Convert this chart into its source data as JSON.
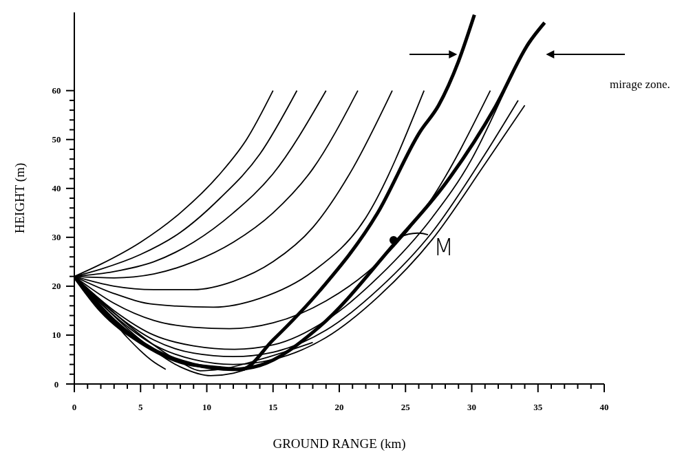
{
  "chart_data": {
    "type": "line",
    "xlabel": "GROUND RANGE (km)",
    "ylabel": "HEIGHT (m)",
    "xlim": [
      0,
      40
    ],
    "ylim": [
      0,
      76
    ],
    "xticks": [
      0,
      {
        "value": 1,
        "label": null
      },
      {
        "value": 2,
        "label": null
      },
      {
        "value": 3,
        "label": null
      },
      {
        "value": 4,
        "label": null
      },
      5,
      {
        "value": 6,
        "label": null
      },
      {
        "value": 7,
        "label": null
      },
      {
        "value": 8,
        "label": null
      },
      {
        "value": 9,
        "label": null
      },
      10,
      {
        "value": 11,
        "label": null
      },
      {
        "value": 12,
        "label": null
      },
      {
        "value": 13,
        "label": null
      },
      {
        "value": 14,
        "label": null
      },
      15,
      {
        "value": 16,
        "label": null
      },
      {
        "value": 17,
        "label": null
      },
      {
        "value": 18,
        "label": null
      },
      {
        "value": 19,
        "label": null
      },
      20,
      {
        "value": 21,
        "label": null
      },
      {
        "value": 22,
        "label": null
      },
      {
        "value": 23,
        "label": null
      },
      {
        "value": 24,
        "label": null
      },
      25,
      {
        "value": 26,
        "label": null
      },
      {
        "value": 27,
        "label": null
      },
      {
        "value": 28,
        "label": null
      },
      {
        "value": 29,
        "label": null
      },
      30,
      {
        "value": 31,
        "label": null
      },
      {
        "value": 32,
        "label": null
      },
      {
        "value": 33,
        "label": null
      },
      {
        "value": 34,
        "label": null
      },
      35,
      {
        "value": 36,
        "label": null
      },
      {
        "value": 37,
        "label": null
      },
      {
        "value": 38,
        "label": null
      },
      {
        "value": 39,
        "label": null
      },
      40
    ],
    "yticks": [
      0,
      {
        "value": 2,
        "label": null
      },
      {
        "value": 4,
        "label": null
      },
      {
        "value": 6,
        "label": null
      },
      {
        "value": 8,
        "label": null
      },
      10,
      {
        "value": 12,
        "label": null
      },
      {
        "value": 14,
        "label": null
      },
      {
        "value": 16,
        "label": null
      },
      {
        "value": 18,
        "label": null
      },
      20,
      {
        "value": 22,
        "label": null
      },
      {
        "value": 24,
        "label": null
      },
      {
        "value": 26,
        "label": null
      },
      {
        "value": 28,
        "label": null
      },
      30,
      {
        "value": 32,
        "label": null
      },
      {
        "value": 34,
        "label": null
      },
      {
        "value": 36,
        "label": null
      },
      {
        "value": 38,
        "label": null
      },
      40,
      {
        "value": 42,
        "label": null
      },
      {
        "value": 44,
        "label": null
      },
      {
        "value": 46,
        "label": null
      },
      {
        "value": 48,
        "label": null
      },
      50,
      {
        "value": 52,
        "label": null
      },
      {
        "value": 54,
        "label": null
      },
      {
        "value": 56,
        "label": null
      },
      {
        "value": 58,
        "label": null
      },
      60
    ],
    "marker": "none",
    "line_style": "solid",
    "annotations": [
      {
        "text": "M",
        "x": 24.1,
        "y": 29.4
      },
      "mirage zone."
    ],
    "series": [
      {
        "color": "#000000",
        "x": [
          0,
          2,
          5,
          8,
          11,
          13,
          15
        ],
        "values": [
          22,
          24.5,
          29,
          35,
          43,
          50,
          60
        ]
      },
      {
        "color": "#000000",
        "x": [
          0,
          2,
          5,
          8,
          11,
          14,
          16.8
        ],
        "values": [
          22,
          23.5,
          26.5,
          31,
          38,
          47,
          60
        ]
      },
      {
        "color": "#000000",
        "x": [
          0,
          3,
          6,
          9,
          12,
          15,
          19
        ],
        "values": [
          22,
          23,
          25,
          29,
          35,
          43,
          60
        ]
      },
      {
        "color": "#000000",
        "x": [
          0,
          3,
          6,
          9,
          12,
          15,
          18,
          21.4
        ],
        "values": [
          22,
          21.7,
          22.5,
          25,
          29,
          35,
          44,
          60
        ]
      },
      {
        "color": "#000000",
        "x": [
          0,
          3,
          6,
          9,
          12,
          15,
          18,
          21,
          24
        ],
        "values": [
          22,
          20,
          19.3,
          19.3,
          21,
          25,
          32,
          44,
          60
        ]
      },
      {
        "color": "#000000",
        "x": [
          0,
          3,
          6,
          10.5,
          14,
          18,
          22,
          26.4
        ],
        "values": [
          22,
          18.5,
          16.3,
          15.7,
          17.5,
          23,
          34,
          60
        ]
      },
      {
        "color": "#000000",
        "x": [
          0,
          3,
          6,
          9,
          11.7,
          15,
          19,
          23,
          27,
          31.4
        ],
        "values": [
          22,
          16.5,
          13,
          11.6,
          11.3,
          12.5,
          17,
          25,
          38,
          60
        ]
      },
      {
        "color": "#000000",
        "x": [
          0,
          3,
          6,
          9,
          12.1,
          15,
          19,
          23,
          27,
          30,
          32.5
        ],
        "values": [
          22,
          15,
          10,
          7.8,
          7.1,
          8,
          13,
          22,
          34,
          46,
          60
        ]
      },
      {
        "color": "#000000",
        "x": [
          0,
          3,
          6,
          9,
          12,
          15,
          19,
          23,
          27,
          31,
          33.5
        ],
        "values": [
          22,
          14.5,
          9,
          6.3,
          5.6,
          6.5,
          11,
          19.5,
          31,
          47,
          58
        ]
      },
      {
        "color": "#000000",
        "x": [
          0,
          3,
          6,
          9,
          12,
          15,
          19,
          23,
          27,
          31,
          34
        ],
        "values": [
          22,
          14,
          8,
          5,
          4,
          5,
          9.5,
          18,
          29.5,
          45,
          57
        ]
      },
      {
        "color": "#000000",
        "x": [
          0,
          2,
          5,
          8,
          9.5,
          11,
          14,
          18
        ],
        "values": [
          22,
          17,
          10,
          4.5,
          2.7,
          3,
          5,
          8.5
        ]
      },
      {
        "color": "#000000",
        "x": [
          0,
          2,
          5,
          8,
          10.3,
          12,
          13
        ],
        "values": [
          22,
          16.5,
          9,
          3.5,
          1.7,
          2.2,
          3
        ]
      },
      {
        "color": "#000000",
        "x": [
          0,
          2,
          4,
          6,
          6.9
        ],
        "values": [
          22,
          16,
          9.5,
          4.5,
          3
        ]
      },
      {
        "color": "#000000",
        "x": [
          0,
          2,
          5,
          8,
          11,
          12.6,
          15,
          18.5,
          22.9,
          26.1,
          27.5,
          29,
          30.2
        ],
        "values": [
          22,
          15,
          8.5,
          4.5,
          3.3,
          3,
          9,
          19,
          35,
          51.6,
          57,
          66,
          75.5
        ]
      },
      {
        "color": "#000000",
        "x": [
          0,
          3,
          6,
          9,
          12,
          14,
          18.5,
          24.2,
          28.1,
          31.8,
          34.3,
          35.5
        ],
        "values": [
          22,
          13,
          7,
          4,
          3,
          3.8,
          11.7,
          28.8,
          41.3,
          56.8,
          69.7,
          73.9
        ]
      }
    ]
  }
}
